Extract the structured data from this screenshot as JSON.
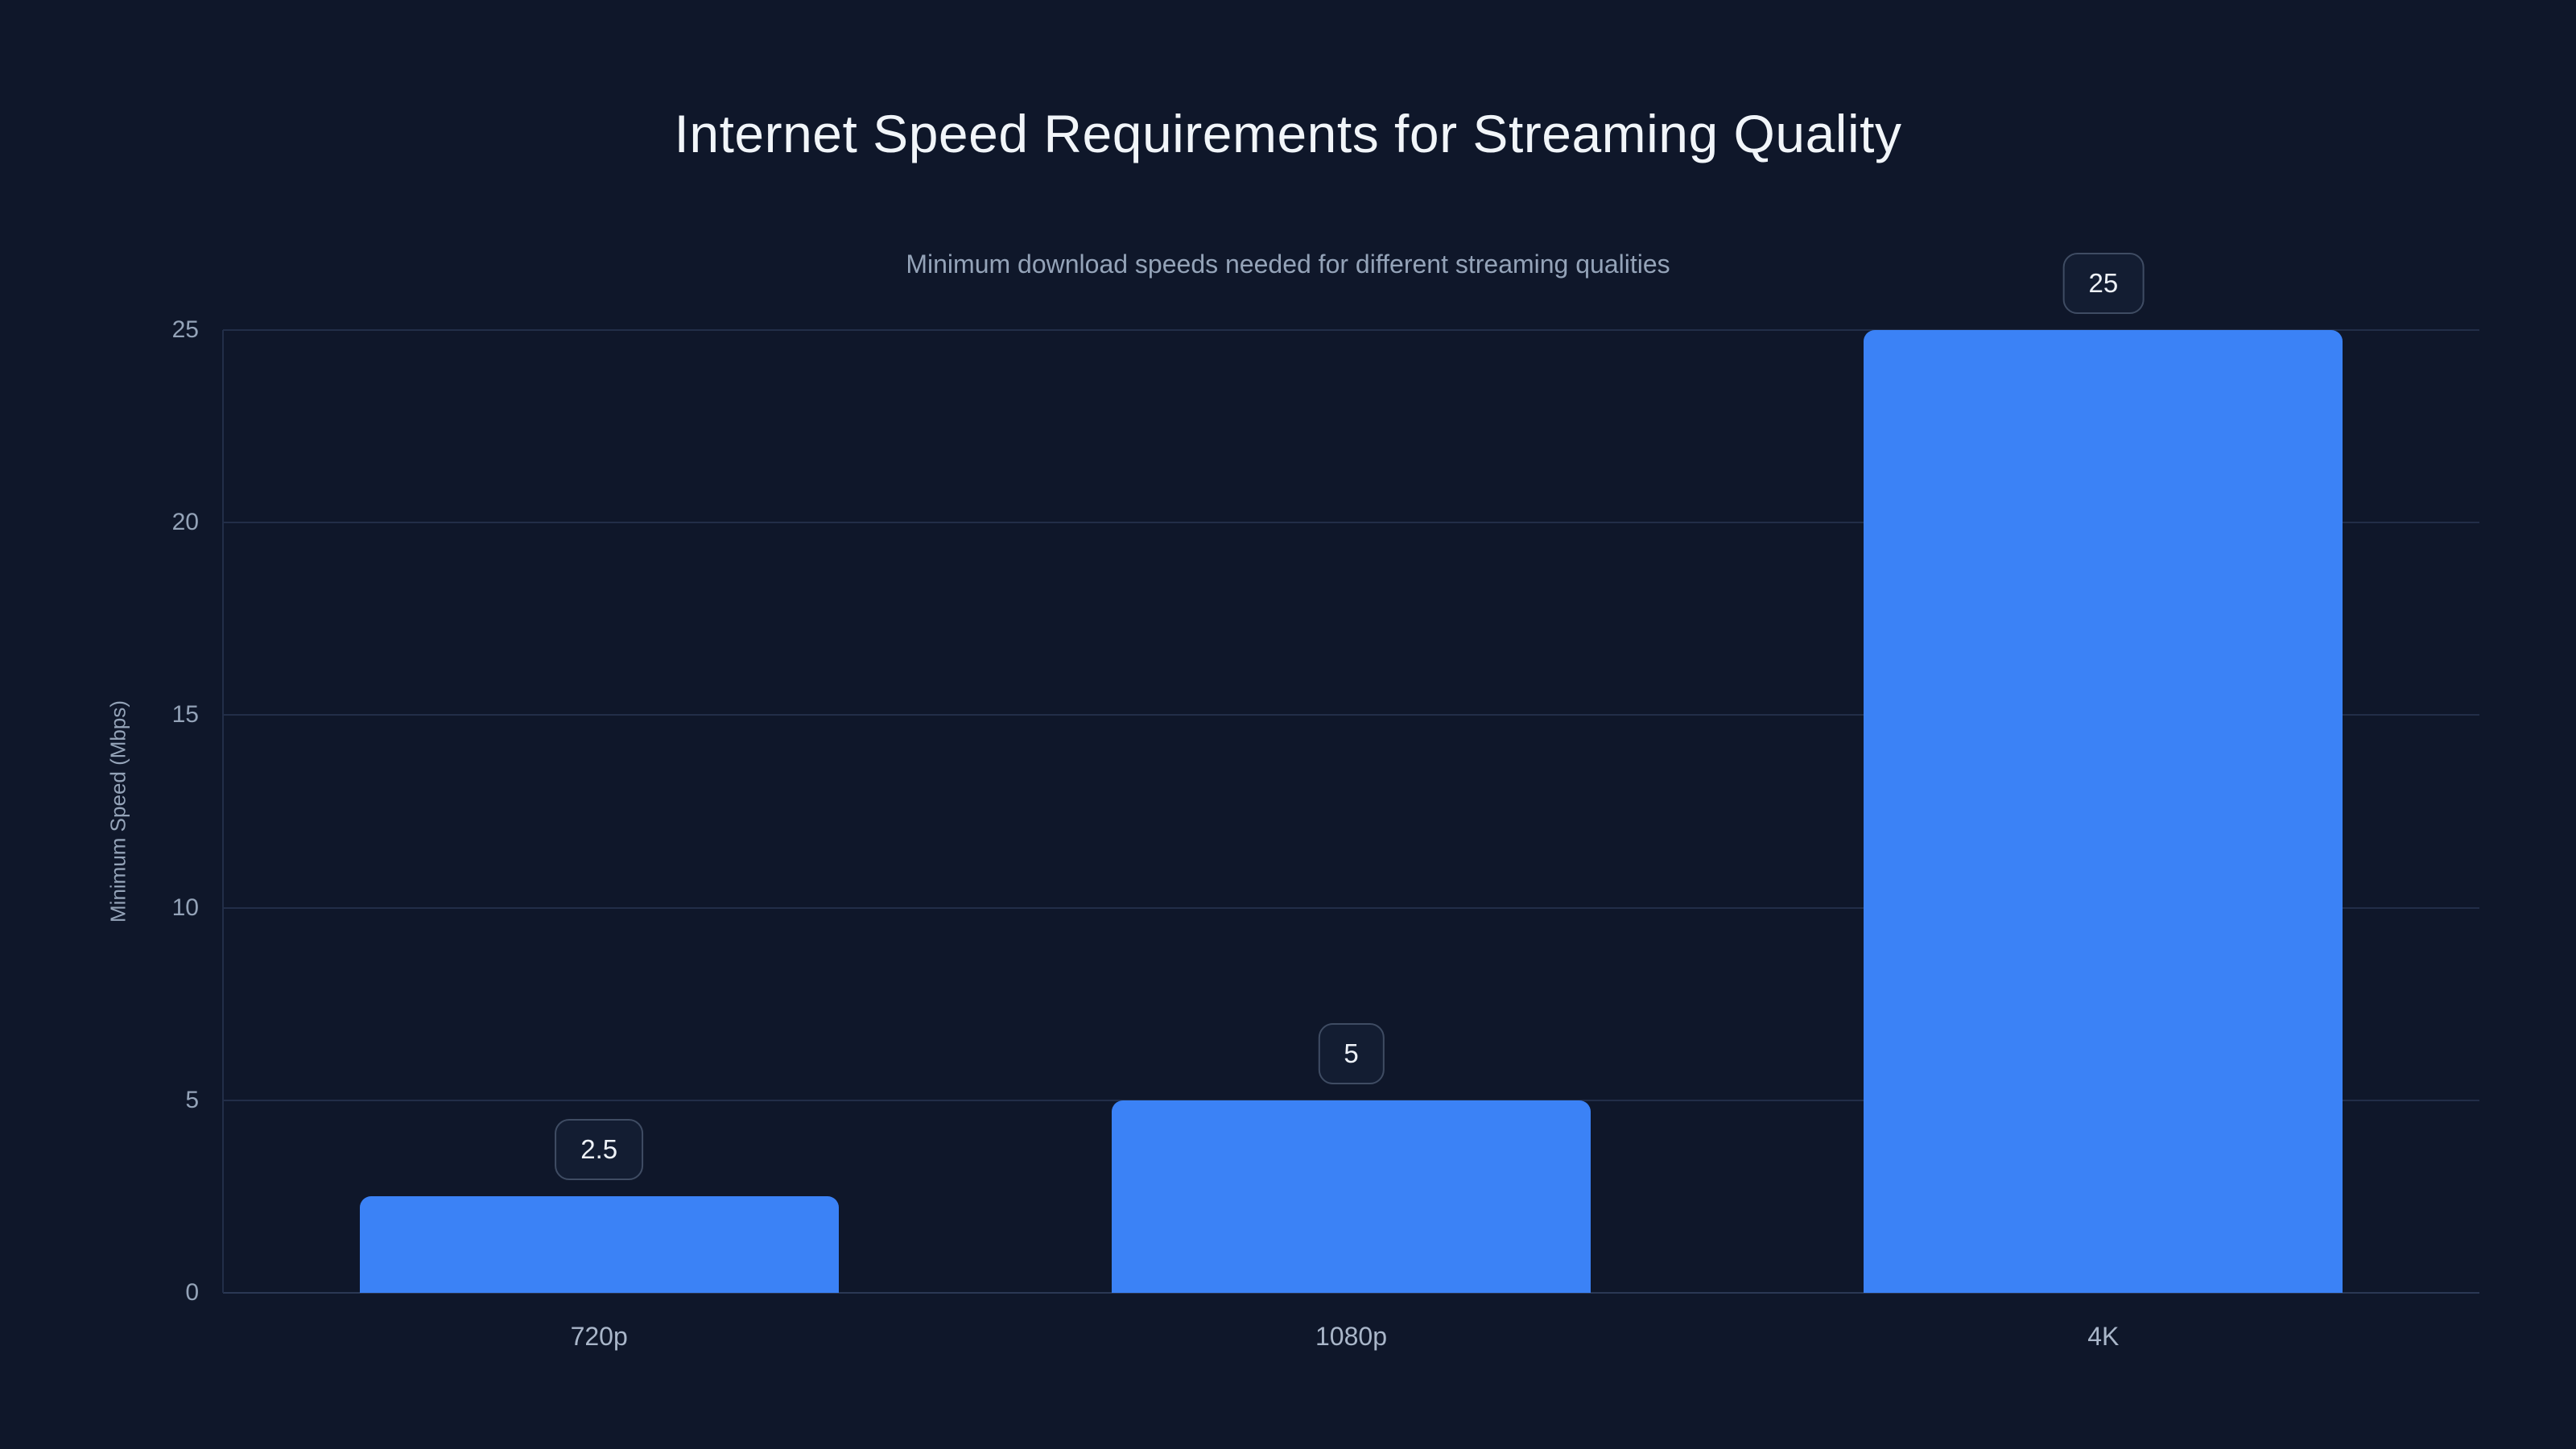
{
  "page": {
    "background_color": "#0f172a"
  },
  "chart_data": {
    "type": "bar",
    "title": "Internet Speed Requirements for Streaming Quality",
    "subtitle": "Minimum download speeds needed for different streaming qualities",
    "categories": [
      "720p",
      "1080p",
      "4K"
    ],
    "values": [
      2.5,
      5,
      25
    ],
    "value_labels": [
      "2.5",
      "5",
      "25"
    ],
    "xlabel": "",
    "ylabel": "Minimum Speed (Mbps)",
    "ylim": [
      0,
      25
    ],
    "yticks": [
      0,
      5,
      10,
      15,
      20,
      25
    ],
    "ytick_labels": [
      "0",
      "5",
      "10",
      "15",
      "20",
      "25"
    ],
    "grid": "horizontal",
    "legend": "none",
    "bar_color": "#3b82f6",
    "title_color": "#f1f5f9",
    "subtitle_color": "#94a3b8",
    "tick_color": "#94a3b8",
    "gridline_color": "#222e48",
    "badge_border_color": "#3f4c63",
    "badge_text_color": "#eef2f8"
  }
}
